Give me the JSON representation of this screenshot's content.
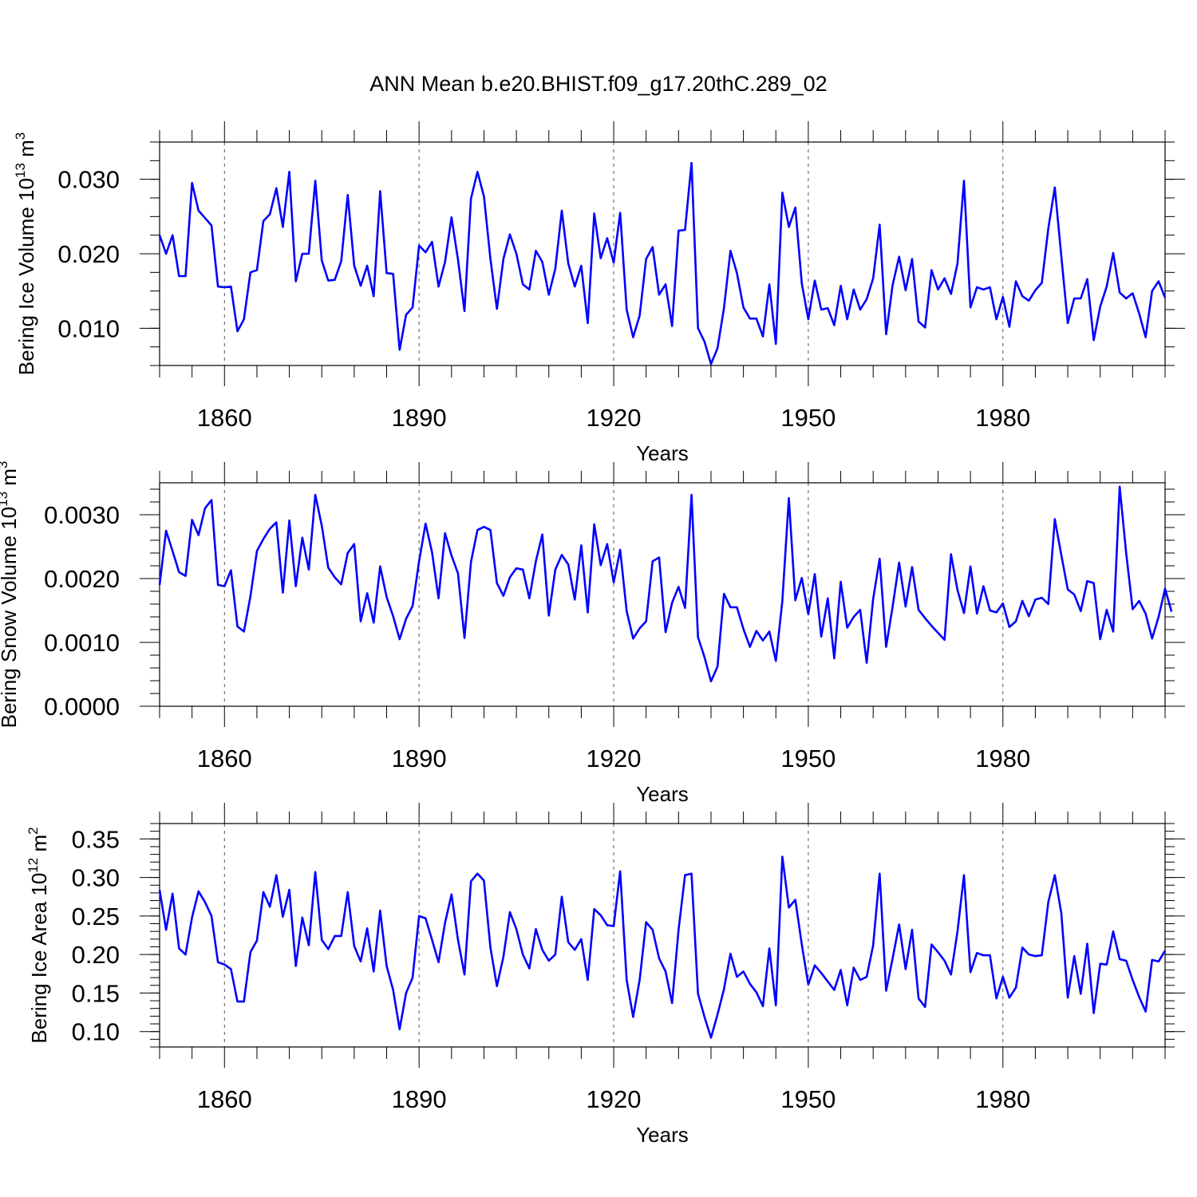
{
  "title": "ANN Mean b.e20.BHIST.f09_g17.20thC.289_02",
  "colors": {
    "line": "#0000ff",
    "axis": "#000000",
    "grid": "#555555"
  },
  "chart_data": [
    {
      "type": "line",
      "name": "ice-volume",
      "ylabel": {
        "base": "Bering Ice Volume 10",
        "exp": "13",
        "unit": " m",
        "unit_exp": "3"
      },
      "xlabel": "Years",
      "xlim": [
        1850,
        2005
      ],
      "ylim": [
        0.005,
        0.035
      ],
      "x_ticks": [
        1860,
        1890,
        1920,
        1950,
        1980
      ],
      "x_tick_labels": [
        "1860",
        "1890",
        "1920",
        "1950",
        "1980"
      ],
      "y_ticks": [
        0.01,
        0.02,
        0.03
      ],
      "y_tick_labels": [
        "0.010",
        "0.020",
        "0.030"
      ],
      "y_minor_step": 0.0025,
      "grid": "dashed vertical at major x ticks",
      "x_start": 1850,
      "values": [
        0.0225,
        0.02,
        0.0225,
        0.017,
        0.017,
        0.0295,
        0.0258,
        0.0248,
        0.0238,
        0.0156,
        0.0155,
        0.0156,
        0.0096,
        0.0112,
        0.0175,
        0.0178,
        0.0244,
        0.0253,
        0.0288,
        0.0236,
        0.031,
        0.0163,
        0.02,
        0.02,
        0.0298,
        0.0191,
        0.0164,
        0.0165,
        0.019,
        0.0279,
        0.0184,
        0.0157,
        0.0184,
        0.0143,
        0.0284,
        0.0174,
        0.0173,
        0.0071,
        0.0118,
        0.0128,
        0.0211,
        0.0202,
        0.0216,
        0.0156,
        0.0189,
        0.0249,
        0.0192,
        0.0123,
        0.0274,
        0.031,
        0.0277,
        0.0193,
        0.0126,
        0.0193,
        0.0226,
        0.02,
        0.0159,
        0.0152,
        0.0204,
        0.0189,
        0.0145,
        0.018,
        0.0258,
        0.0187,
        0.0156,
        0.0184,
        0.0107,
        0.0254,
        0.0194,
        0.0221,
        0.0188,
        0.0255,
        0.0125,
        0.0088,
        0.0117,
        0.0193,
        0.0209,
        0.0145,
        0.0159,
        0.0103,
        0.0231,
        0.0232,
        0.0322,
        0.01,
        0.0082,
        0.0052,
        0.0073,
        0.0127,
        0.0204,
        0.0174,
        0.0128,
        0.0113,
        0.0113,
        0.0089,
        0.0159,
        0.0079,
        0.0282,
        0.0236,
        0.0262,
        0.016,
        0.0112,
        0.0164,
        0.0125,
        0.0127,
        0.0104,
        0.0157,
        0.0112,
        0.0152,
        0.0125,
        0.0139,
        0.0167,
        0.0239,
        0.0092,
        0.0158,
        0.0196,
        0.0151,
        0.0193,
        0.0109,
        0.0101,
        0.0178,
        0.0152,
        0.0167,
        0.0146,
        0.0187,
        0.0298,
        0.0128,
        0.0155,
        0.0152,
        0.0155,
        0.0112,
        0.0142,
        0.0102,
        0.0163,
        0.0143,
        0.0137,
        0.0151,
        0.0161,
        0.0234,
        0.0289,
        0.0197,
        0.0107,
        0.014,
        0.014,
        0.0166,
        0.0084,
        0.0129,
        0.0156,
        0.0201,
        0.0148,
        0.014,
        0.0147,
        0.012,
        0.0088,
        0.015,
        0.0163,
        0.0141
      ]
    },
    {
      "type": "line",
      "name": "snow-volume",
      "ylabel": {
        "base": "Bering Snow Volume 10",
        "exp": "13",
        "unit": " m",
        "unit_exp": "3"
      },
      "xlabel": "Years",
      "xlim": [
        1850,
        2005
      ],
      "ylim": [
        0.0,
        0.0035
      ],
      "x_ticks": [
        1860,
        1890,
        1920,
        1950,
        1980
      ],
      "x_tick_labels": [
        "1860",
        "1890",
        "1920",
        "1950",
        "1980"
      ],
      "y_ticks": [
        0.0,
        0.001,
        0.002,
        0.003
      ],
      "y_tick_labels": [
        "0.0000",
        "0.0010",
        "0.0020",
        "0.0030"
      ],
      "y_minor_step": 0.0002,
      "grid": "dashed vertical at major x ticks",
      "x_start": 1850,
      "values": [
        0.0019,
        0.00275,
        0.00243,
        0.0021,
        0.00204,
        0.00292,
        0.00268,
        0.0031,
        0.00323,
        0.0019,
        0.00188,
        0.00213,
        0.00125,
        0.00117,
        0.00172,
        0.00243,
        0.00262,
        0.00278,
        0.00288,
        0.00178,
        0.00291,
        0.00188,
        0.00264,
        0.00214,
        0.00331,
        0.00283,
        0.00217,
        0.00202,
        0.00191,
        0.0024,
        0.00254,
        0.00133,
        0.00177,
        0.00131,
        0.00219,
        0.00171,
        0.00141,
        0.00105,
        0.00137,
        0.00157,
        0.00227,
        0.00286,
        0.00241,
        0.00169,
        0.00271,
        0.00236,
        0.00208,
        0.00107,
        0.00226,
        0.00276,
        0.00281,
        0.00276,
        0.00193,
        0.00173,
        0.00202,
        0.00216,
        0.00214,
        0.00169,
        0.00227,
        0.00269,
        0.00142,
        0.00214,
        0.00237,
        0.00222,
        0.00167,
        0.00252,
        0.00147,
        0.00285,
        0.00221,
        0.00254,
        0.00194,
        0.00245,
        0.00149,
        0.00106,
        0.00122,
        0.00133,
        0.00227,
        0.00233,
        0.00116,
        0.00162,
        0.00187,
        0.00154,
        0.00331,
        0.00108,
        0.00077,
        0.00039,
        0.00062,
        0.00176,
        0.00155,
        0.00155,
        0.00121,
        0.00093,
        0.00118,
        0.00103,
        0.00117,
        0.00071,
        0.00165,
        0.00326,
        0.00166,
        0.00201,
        0.00144,
        0.00207,
        0.00109,
        0.00169,
        0.00075,
        0.00195,
        0.00123,
        0.0014,
        0.00151,
        0.00068,
        0.00168,
        0.00231,
        0.00093,
        0.00156,
        0.00225,
        0.00156,
        0.00218,
        0.00151,
        0.00138,
        0.00126,
        0.00115,
        0.00104,
        0.00238,
        0.00182,
        0.00146,
        0.00219,
        0.00145,
        0.00188,
        0.0015,
        0.00147,
        0.00161,
        0.00124,
        0.00133,
        0.00165,
        0.00141,
        0.00167,
        0.0017,
        0.0016,
        0.00293,
        0.00237,
        0.00183,
        0.00175,
        0.00149,
        0.00196,
        0.00193,
        0.00105,
        0.00151,
        0.00117,
        0.00344,
        0.0024,
        0.00152,
        0.00165,
        0.00145,
        0.00106,
        0.0014,
        0.00184,
        0.00148
      ]
    },
    {
      "type": "line",
      "name": "ice-area",
      "ylabel": {
        "base": "Bering Ice Area 10",
        "exp": "12",
        "unit": " m",
        "unit_exp": "2"
      },
      "xlabel": "Years",
      "xlim": [
        1850,
        2005
      ],
      "ylim": [
        0.08,
        0.37
      ],
      "x_ticks": [
        1860,
        1890,
        1920,
        1950,
        1980
      ],
      "x_tick_labels": [
        "1860",
        "1890",
        "1920",
        "1950",
        "1980"
      ],
      "y_ticks": [
        0.1,
        0.15,
        0.2,
        0.25,
        0.3,
        0.35
      ],
      "y_tick_labels": [
        "0.10",
        "0.15",
        "0.20",
        "0.25",
        "0.30",
        "0.35"
      ],
      "y_minor_step": 0.01,
      "grid": "dashed vertical at major x ticks",
      "x_start": 1850,
      "values": [
        0.284,
        0.232,
        0.279,
        0.208,
        0.2,
        0.248,
        0.282,
        0.268,
        0.25,
        0.19,
        0.187,
        0.181,
        0.139,
        0.139,
        0.203,
        0.218,
        0.281,
        0.262,
        0.303,
        0.249,
        0.284,
        0.185,
        0.248,
        0.212,
        0.307,
        0.219,
        0.207,
        0.224,
        0.224,
        0.281,
        0.211,
        0.191,
        0.234,
        0.178,
        0.257,
        0.185,
        0.154,
        0.103,
        0.15,
        0.17,
        0.25,
        0.247,
        0.219,
        0.19,
        0.241,
        0.278,
        0.219,
        0.174,
        0.295,
        0.305,
        0.296,
        0.209,
        0.159,
        0.197,
        0.255,
        0.233,
        0.2,
        0.182,
        0.233,
        0.206,
        0.192,
        0.2,
        0.275,
        0.216,
        0.206,
        0.22,
        0.167,
        0.259,
        0.251,
        0.238,
        0.237,
        0.308,
        0.167,
        0.119,
        0.167,
        0.242,
        0.232,
        0.195,
        0.178,
        0.137,
        0.232,
        0.303,
        0.305,
        0.149,
        0.119,
        0.092,
        0.122,
        0.155,
        0.201,
        0.171,
        0.178,
        0.162,
        0.151,
        0.133,
        0.208,
        0.134,
        0.327,
        0.261,
        0.271,
        0.213,
        0.161,
        0.186,
        0.176,
        0.165,
        0.154,
        0.18,
        0.134,
        0.183,
        0.167,
        0.171,
        0.212,
        0.305,
        0.153,
        0.195,
        0.239,
        0.181,
        0.232,
        0.143,
        0.132,
        0.213,
        0.203,
        0.192,
        0.174,
        0.23,
        0.303,
        0.177,
        0.202,
        0.199,
        0.199,
        0.143,
        0.171,
        0.144,
        0.157,
        0.209,
        0.2,
        0.198,
        0.199,
        0.268,
        0.303,
        0.254,
        0.144,
        0.198,
        0.149,
        0.214,
        0.124,
        0.188,
        0.187,
        0.23,
        0.194,
        0.192,
        0.167,
        0.145,
        0.126,
        0.193,
        0.191,
        0.205
      ]
    }
  ]
}
